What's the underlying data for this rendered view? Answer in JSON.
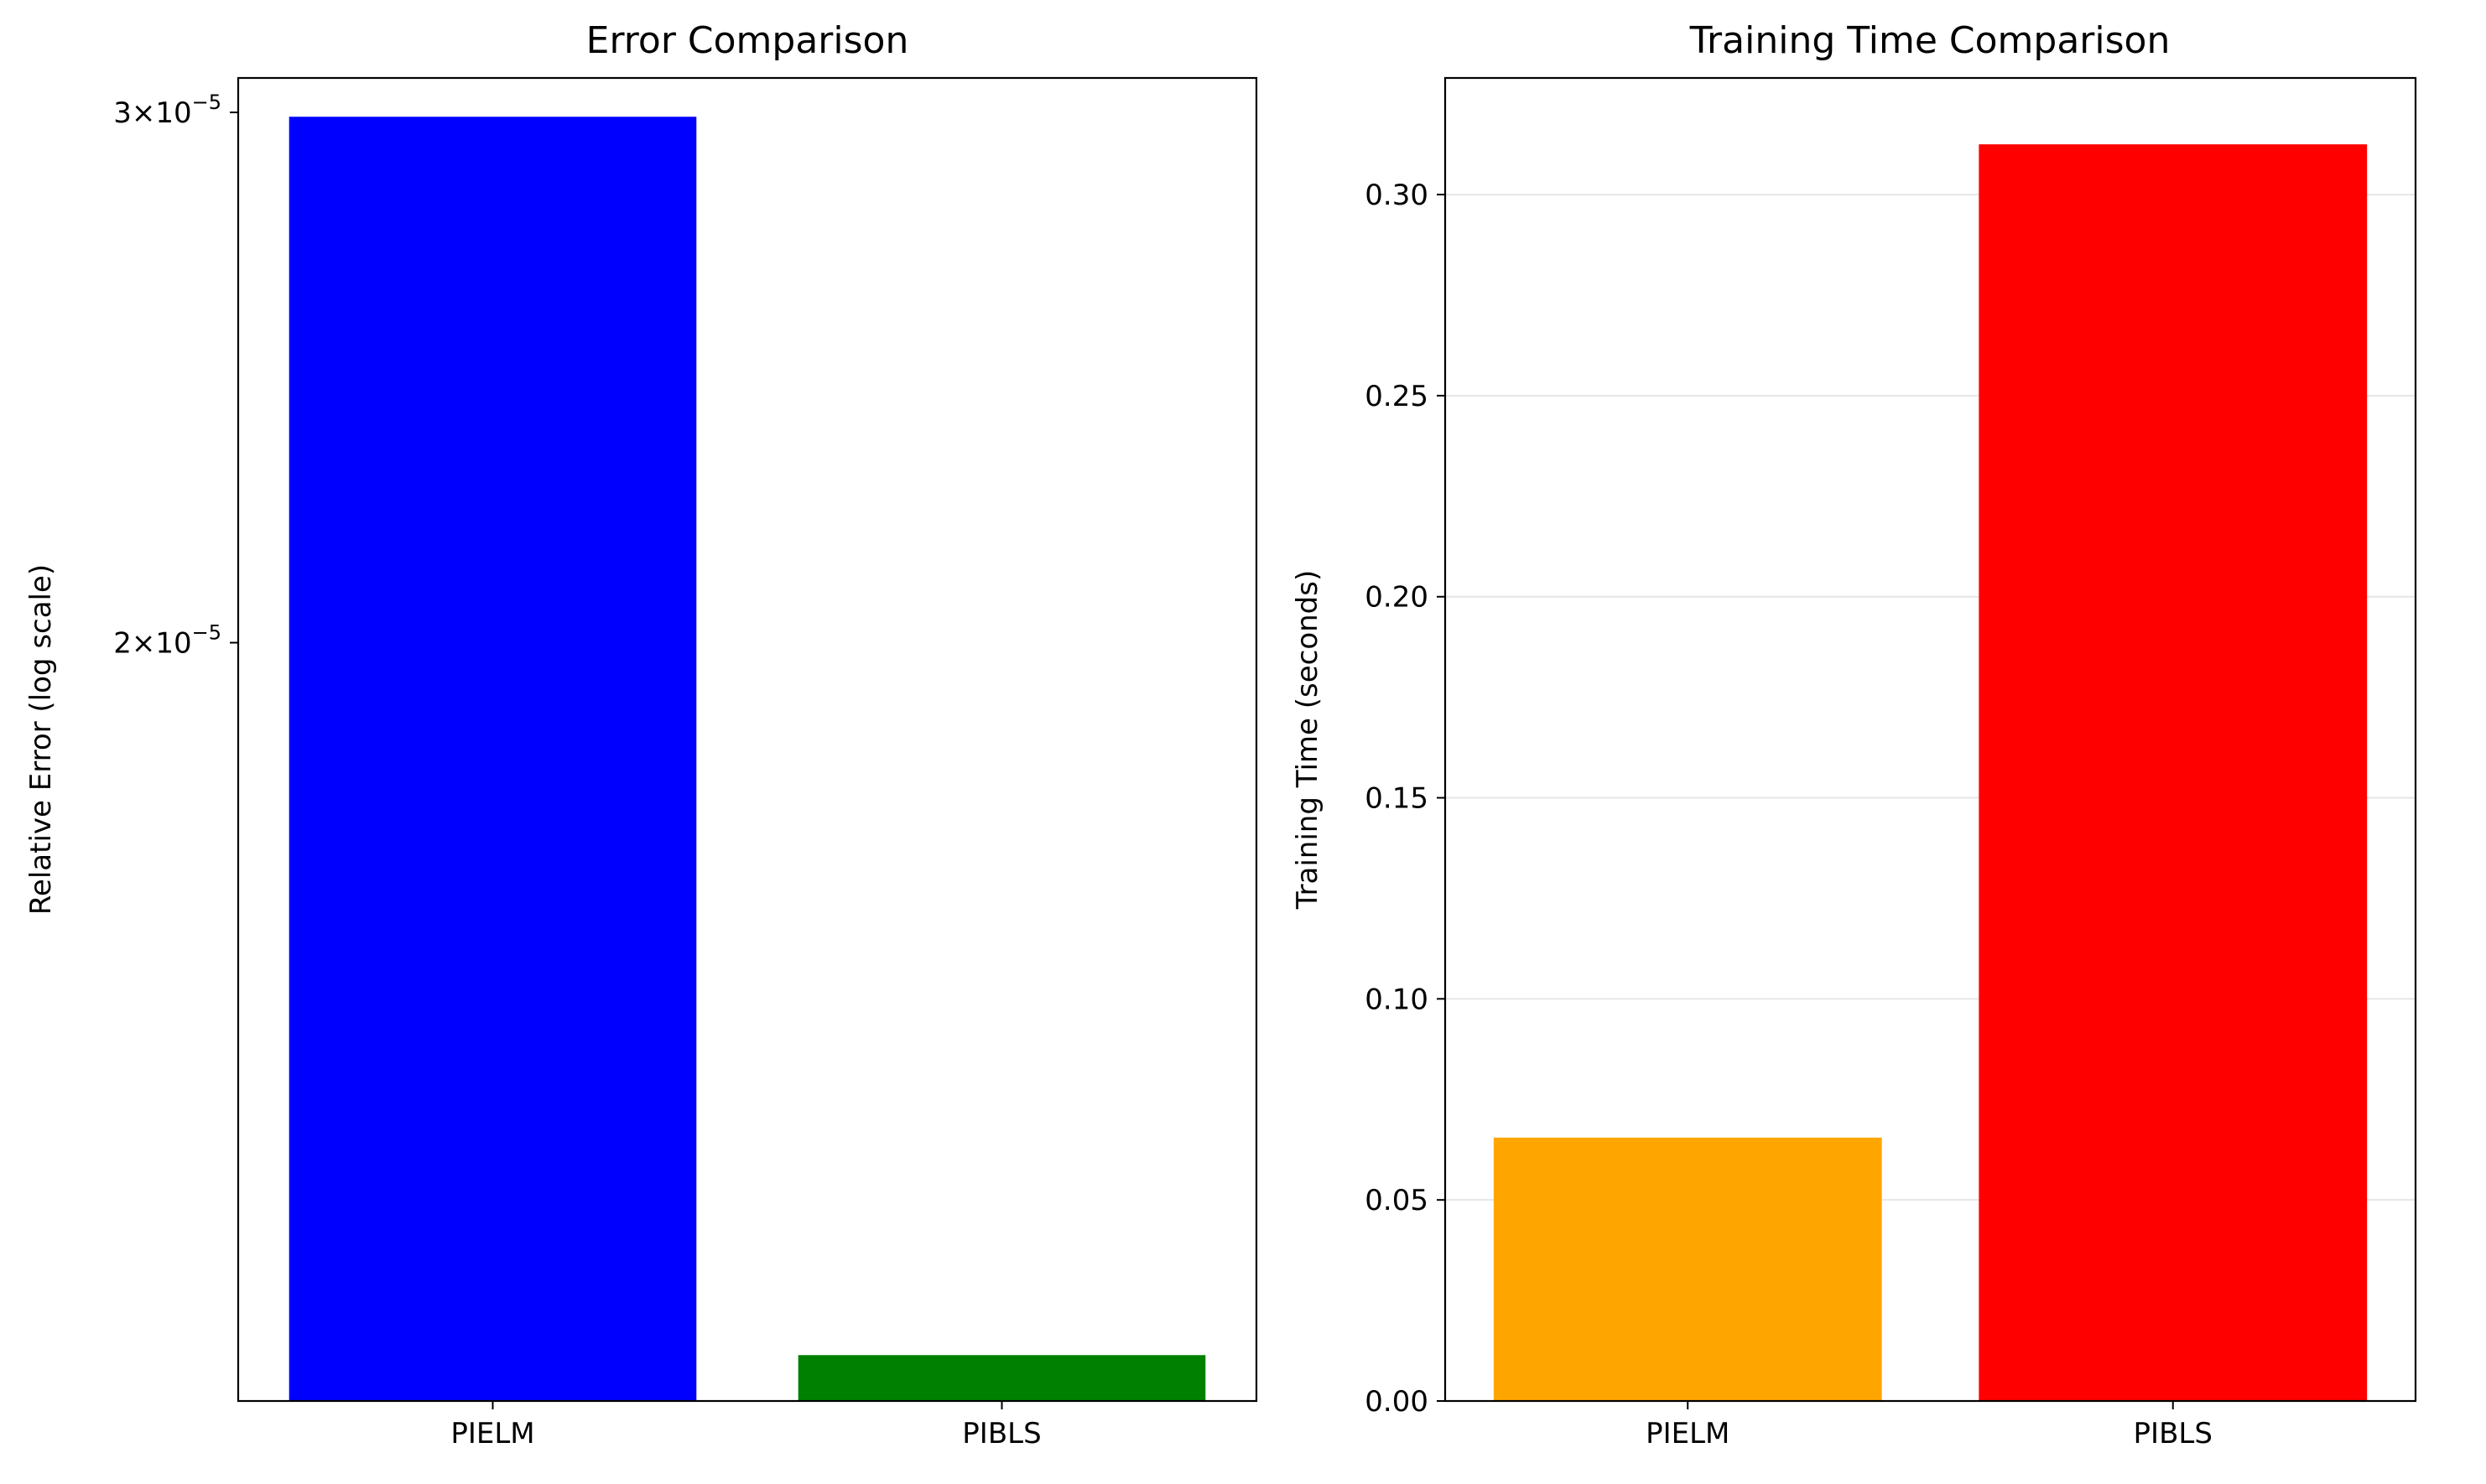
{
  "chart_data": [
    {
      "type": "bar",
      "title": "Error Comparison",
      "xlabel": "",
      "ylabel": "Relative Error (log scale)",
      "yscale": "log",
      "ylim": [
        1.12e-05,
        3.08e-05
      ],
      "yticks": [
        {
          "value": 3e-05,
          "mantissa": "3",
          "exponent": "−5"
        },
        {
          "value": 2e-05,
          "mantissa": "2",
          "exponent": "−5"
        }
      ],
      "grid": false,
      "categories": [
        "PIELM",
        "PIBLS"
      ],
      "values": [
        2.99e-05,
        1.16e-05
      ],
      "colors": [
        "#0000ff",
        "#008000"
      ]
    },
    {
      "type": "bar",
      "title": "Training Time Comparison",
      "xlabel": "",
      "ylabel": "Training Time (seconds)",
      "yscale": "linear",
      "ylim": [
        0,
        0.329
      ],
      "yticks": [
        "0.00",
        "0.05",
        "0.10",
        "0.15",
        "0.20",
        "0.25",
        "0.30"
      ],
      "grid": true,
      "categories": [
        "PIELM",
        "PIBLS"
      ],
      "values": [
        0.0655,
        0.3125
      ],
      "colors": [
        "#ffa500",
        "#ff0000"
      ]
    }
  ]
}
